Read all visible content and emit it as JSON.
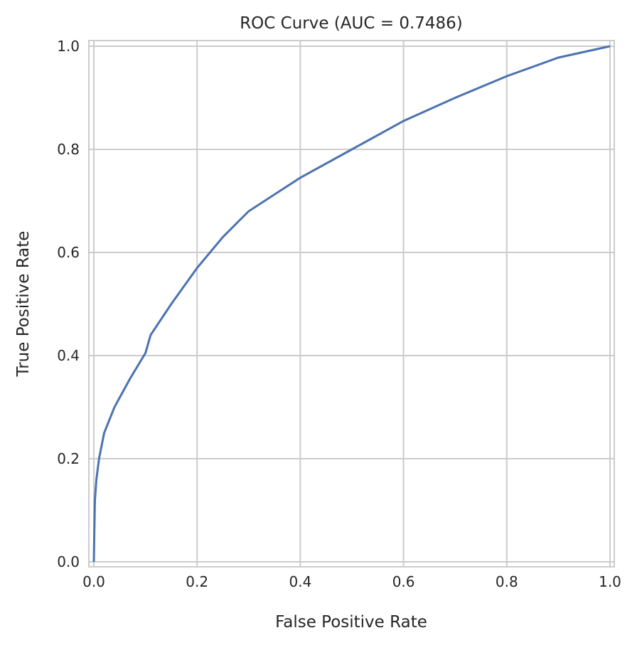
{
  "chart_data": {
    "type": "line",
    "title": "ROC Curve (AUC = 0.7486)",
    "xlabel": "False Positive Rate",
    "ylabel": "True Positive Rate",
    "xlim": [
      0,
      1
    ],
    "ylim": [
      0,
      1
    ],
    "grid": true,
    "xticks": [
      "0.0",
      "0.2",
      "0.4",
      "0.6",
      "0.8",
      "1.0"
    ],
    "yticks": [
      "0.0",
      "0.2",
      "0.4",
      "0.6",
      "0.8",
      "1.0"
    ],
    "series": [
      {
        "name": "ROC",
        "color": "#4c72b0",
        "x": [
          0,
          0.001,
          0.002,
          0.005,
          0.01,
          0.02,
          0.04,
          0.07,
          0.1,
          0.11,
          0.15,
          0.2,
          0.25,
          0.3,
          0.4,
          0.5,
          0.6,
          0.7,
          0.8,
          0.9,
          1.0
        ],
        "y": [
          0,
          0.06,
          0.12,
          0.16,
          0.2,
          0.25,
          0.3,
          0.355,
          0.405,
          0.44,
          0.5,
          0.57,
          0.63,
          0.68,
          0.745,
          0.8,
          0.855,
          0.9,
          0.942,
          0.978,
          1.0
        ]
      }
    ]
  }
}
